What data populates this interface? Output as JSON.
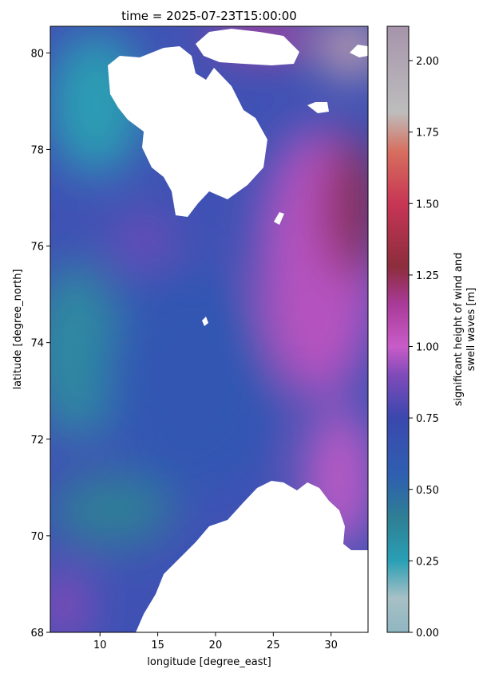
{
  "chart_data": {
    "type": "heatmap",
    "title": "time = 2025-07-23T15:00:00",
    "xlabel": "longitude [degree_east]",
    "ylabel": "latitude [degree_north]",
    "xlim": [
      5.7,
      33.2
    ],
    "ylim": [
      68,
      80.55
    ],
    "xticks": [
      10,
      15,
      20,
      25,
      30
    ],
    "yticks": [
      68,
      70,
      72,
      74,
      76,
      78,
      80
    ],
    "colorbar": {
      "label_line1": "significant height of wind and",
      "label_line2": "swell waves [m]",
      "range": [
        0,
        2.12
      ],
      "ticks": [
        "0.00",
        "0.25",
        "0.50",
        "0.75",
        "1.00",
        "1.25",
        "1.50",
        "1.75",
        "2.00"
      ],
      "tick_values": [
        0,
        0.25,
        0.5,
        0.75,
        1.0,
        1.25,
        1.5,
        1.75,
        2.0
      ],
      "colormap": [
        {
          "v": 0.0,
          "c": "#8fb6c1"
        },
        {
          "v": 0.12,
          "c": "#a7c0c5"
        },
        {
          "v": 0.25,
          "c": "#2a9fb5"
        },
        {
          "v": 0.4,
          "c": "#2e7f94"
        },
        {
          "v": 0.55,
          "c": "#2f5fb0"
        },
        {
          "v": 0.75,
          "c": "#3a48ae"
        },
        {
          "v": 0.9,
          "c": "#7f4ab9"
        },
        {
          "v": 1.0,
          "c": "#c85cc8"
        },
        {
          "v": 1.15,
          "c": "#a83a97"
        },
        {
          "v": 1.28,
          "c": "#8c2d3c"
        },
        {
          "v": 1.5,
          "c": "#c73654"
        },
        {
          "v": 1.68,
          "c": "#d76e5e"
        },
        {
          "v": 1.82,
          "c": "#bdbdbd"
        },
        {
          "v": 2.12,
          "c": "#a694ab"
        }
      ]
    },
    "land_color": "#ffffff"
  }
}
